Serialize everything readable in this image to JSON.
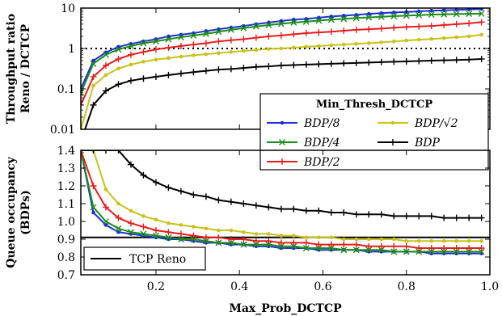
{
  "chart_data": [
    {
      "type": "line",
      "ylabel": "Throughput ratio Reno / DCTCP",
      "ylabel_lines": [
        "Throughput ratio",
        "Reno / DCTCP"
      ],
      "yscale": "log",
      "ylim": [
        0.01,
        10
      ],
      "xlim": [
        0.02,
        1.0
      ],
      "yticks": [
        0.01,
        0.1,
        1,
        10
      ],
      "ytick_labels": [
        "0.01",
        "0.1",
        "1",
        "10"
      ],
      "reference_line": {
        "y": 1,
        "style": "dotted"
      },
      "legend": {
        "title": "Min_Thresh_DCTCP",
        "placement": "lower-right",
        "entries": [
          "BDP/8",
          "BDP/4",
          "BDP/2",
          "BDP/√2",
          "BDP",
          ""
        ]
      },
      "x": [
        0.02,
        0.05,
        0.08,
        0.11,
        0.14,
        0.17,
        0.2,
        0.23,
        0.26,
        0.29,
        0.32,
        0.35,
        0.38,
        0.41,
        0.44,
        0.47,
        0.5,
        0.53,
        0.56,
        0.59,
        0.62,
        0.65,
        0.68,
        0.71,
        0.74,
        0.77,
        0.8,
        0.83,
        0.86,
        0.89,
        0.92,
        0.95,
        0.98
      ],
      "series": [
        {
          "name": "BDP/8",
          "color": "#1f2fd6",
          "marker": "dot",
          "values": [
            0.1,
            0.5,
            0.8,
            1.1,
            1.3,
            1.5,
            1.7,
            2.0,
            2.2,
            2.4,
            2.7,
            3.0,
            3.3,
            3.6,
            4.0,
            4.4,
            4.8,
            5.2,
            5.4,
            5.8,
            6.2,
            6.5,
            6.8,
            7.2,
            7.5,
            7.8,
            8.0,
            8.3,
            8.6,
            8.8,
            9.0,
            9.2,
            9.5
          ]
        },
        {
          "name": "BDP/4",
          "color": "#1c8c1c",
          "marker": "x",
          "values": [
            0.08,
            0.42,
            0.7,
            0.95,
            1.15,
            1.35,
            1.5,
            1.7,
            1.9,
            2.1,
            2.3,
            2.6,
            2.9,
            3.2,
            3.5,
            3.8,
            4.1,
            4.4,
            4.6,
            4.9,
            5.2,
            5.4,
            5.7,
            5.9,
            6.1,
            6.3,
            6.5,
            6.7,
            6.9,
            7.0,
            7.1,
            7.2,
            7.3
          ]
        },
        {
          "name": "BDP/2",
          "color": "#e81c1c",
          "marker": "plus",
          "values": [
            0.04,
            0.2,
            0.38,
            0.55,
            0.7,
            0.82,
            0.95,
            1.05,
            1.15,
            1.25,
            1.35,
            1.5,
            1.6,
            1.7,
            1.85,
            2.0,
            2.1,
            2.25,
            2.4,
            2.5,
            2.6,
            2.75,
            2.9,
            3.0,
            3.1,
            3.25,
            3.4,
            3.5,
            3.6,
            3.8,
            4.0,
            4.2,
            4.5
          ]
        },
        {
          "name": "BDP/√2",
          "color": "#c8c21c",
          "marker": "dot",
          "values": [
            0.01,
            0.12,
            0.22,
            0.32,
            0.4,
            0.47,
            0.53,
            0.58,
            0.63,
            0.68,
            0.72,
            0.77,
            0.82,
            0.87,
            0.92,
            0.97,
            1.0,
            1.05,
            1.1,
            1.15,
            1.2,
            1.25,
            1.3,
            1.35,
            1.42,
            1.5,
            1.58,
            1.65,
            1.72,
            1.8,
            1.9,
            2.0,
            2.2
          ]
        },
        {
          "name": "BDP",
          "color": "#000000",
          "marker": "plus",
          "values": [
            0.005,
            0.04,
            0.09,
            0.13,
            0.16,
            0.18,
            0.2,
            0.22,
            0.24,
            0.26,
            0.28,
            0.3,
            0.31,
            0.33,
            0.35,
            0.36,
            0.38,
            0.39,
            0.4,
            0.41,
            0.42,
            0.43,
            0.44,
            0.45,
            0.46,
            0.47,
            0.48,
            0.49,
            0.5,
            0.51,
            0.52,
            0.53,
            0.55
          ]
        }
      ]
    },
    {
      "type": "line",
      "xlabel": "Max_Prob_DCTCP",
      "ylabel": "Queue occupancy (BDPs)",
      "ylabel_lines": [
        "Queue occupancy",
        "(BDPs)"
      ],
      "ylim": [
        0.7,
        1.4
      ],
      "xlim": [
        0.02,
        1.0
      ],
      "yticks": [
        0.7,
        0.8,
        0.9,
        1.0,
        1.1,
        1.2,
        1.3,
        1.4
      ],
      "ytick_labels": [
        "0.7",
        "0.8",
        "0.9",
        "1.0",
        "1.1",
        "1.2",
        "1.3",
        "1.4"
      ],
      "xticks": [
        0.2,
        0.4,
        0.6,
        0.8,
        1.0
      ],
      "xtick_labels": [
        "0.2",
        "0.4",
        "0.6",
        "0.8",
        "1.0"
      ],
      "reference_line": {
        "y": 0.91,
        "label": "TCP Reno",
        "color": "#000000"
      },
      "legend": {
        "placement": "lower-left",
        "entries": [
          "TCP Reno"
        ]
      },
      "x": [
        0.02,
        0.05,
        0.08,
        0.11,
        0.14,
        0.17,
        0.2,
        0.23,
        0.26,
        0.29,
        0.32,
        0.35,
        0.38,
        0.41,
        0.44,
        0.47,
        0.5,
        0.53,
        0.56,
        0.59,
        0.62,
        0.65,
        0.68,
        0.71,
        0.74,
        0.77,
        0.8,
        0.83,
        0.86,
        0.89,
        0.92,
        0.95,
        0.98
      ],
      "series": [
        {
          "name": "BDP/8",
          "color": "#1f2fd6",
          "marker": "dot",
          "values": [
            1.4,
            1.05,
            0.98,
            0.94,
            0.93,
            0.92,
            0.91,
            0.9,
            0.9,
            0.89,
            0.88,
            0.88,
            0.87,
            0.87,
            0.86,
            0.86,
            0.85,
            0.85,
            0.85,
            0.84,
            0.84,
            0.84,
            0.84,
            0.83,
            0.83,
            0.83,
            0.83,
            0.83,
            0.82,
            0.82,
            0.82,
            0.82,
            0.82
          ]
        },
        {
          "name": "BDP/4",
          "color": "#1c8c1c",
          "marker": "x",
          "values": [
            1.4,
            1.08,
            1.0,
            0.96,
            0.94,
            0.93,
            0.92,
            0.91,
            0.9,
            0.9,
            0.89,
            0.88,
            0.88,
            0.87,
            0.87,
            0.87,
            0.86,
            0.86,
            0.85,
            0.85,
            0.85,
            0.84,
            0.84,
            0.84,
            0.84,
            0.83,
            0.83,
            0.83,
            0.83,
            0.83,
            0.83,
            0.83,
            0.83
          ]
        },
        {
          "name": "BDP/2",
          "color": "#e81c1c",
          "marker": "plus",
          "values": [
            1.4,
            1.2,
            1.08,
            1.02,
            0.99,
            0.97,
            0.95,
            0.94,
            0.93,
            0.92,
            0.91,
            0.91,
            0.9,
            0.9,
            0.89,
            0.89,
            0.88,
            0.88,
            0.88,
            0.87,
            0.87,
            0.87,
            0.87,
            0.86,
            0.86,
            0.86,
            0.86,
            0.85,
            0.85,
            0.85,
            0.85,
            0.85,
            0.85
          ]
        },
        {
          "name": "BDP/√2",
          "color": "#c8c21c",
          "marker": "dot",
          "values": [
            1.4,
            1.4,
            1.18,
            1.1,
            1.06,
            1.03,
            1.01,
            0.99,
            0.98,
            0.97,
            0.96,
            0.95,
            0.95,
            0.94,
            0.93,
            0.93,
            0.92,
            0.92,
            0.91,
            0.91,
            0.91,
            0.9,
            0.9,
            0.9,
            0.9,
            0.9,
            0.89,
            0.89,
            0.89,
            0.89,
            0.89,
            0.89,
            0.89
          ]
        },
        {
          "name": "BDP",
          "color": "#000000",
          "marker": "plus",
          "values": [
            1.4,
            1.4,
            1.4,
            1.4,
            1.32,
            1.26,
            1.22,
            1.19,
            1.17,
            1.15,
            1.14,
            1.12,
            1.11,
            1.1,
            1.09,
            1.08,
            1.07,
            1.07,
            1.06,
            1.06,
            1.05,
            1.05,
            1.04,
            1.04,
            1.04,
            1.03,
            1.03,
            1.03,
            1.03,
            1.02,
            1.02,
            1.02,
            1.02
          ]
        }
      ]
    }
  ]
}
